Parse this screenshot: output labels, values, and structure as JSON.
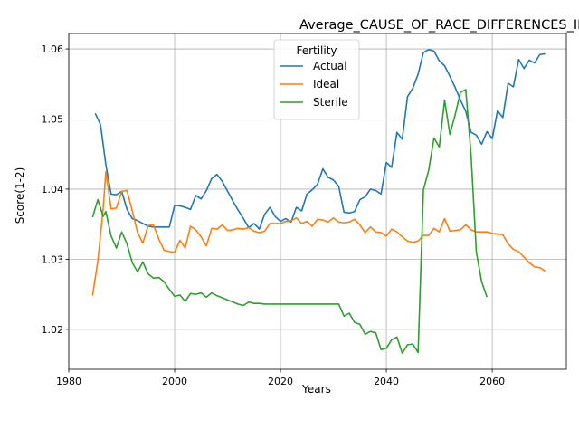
{
  "chart_data": {
    "type": "line",
    "title": "Average_CAUSE_OF_RACE_DIFFERENCES_INBORN_White_Above_Average_by_Fertility",
    "xlabel": "Years",
    "ylabel": "Score(1-2)",
    "xlim": [
      1980,
      2074
    ],
    "ylim": [
      1.0143,
      1.0622
    ],
    "xticks": [
      1980,
      2000,
      2020,
      2040,
      2060
    ],
    "yticks": [
      1.02,
      1.03,
      1.04,
      1.05,
      1.06
    ],
    "grid": true,
    "legend": {
      "title": "Fertility",
      "position": "top-center"
    },
    "series": [
      {
        "name": "Actual",
        "color": "#1f77b4",
        "points": [
          [
            1985,
            1.0508
          ],
          [
            1986,
            1.0492
          ],
          [
            1987,
            1.0435
          ],
          [
            1988,
            1.0393
          ],
          [
            1989,
            1.0392
          ],
          [
            1990,
            1.0397
          ],
          [
            1991,
            1.0371
          ],
          [
            1992,
            1.0358
          ],
          [
            1993,
            1.0355
          ],
          [
            1994,
            1.0351
          ],
          [
            1995,
            1.0347
          ],
          [
            1996,
            1.0346
          ],
          [
            1997,
            1.0346
          ],
          [
            1998,
            1.0346
          ],
          [
            1999,
            1.0346
          ],
          [
            2000,
            1.0377
          ],
          [
            2001,
            1.0376
          ],
          [
            2002,
            1.0374
          ],
          [
            2003,
            1.0371
          ],
          [
            2004,
            1.0391
          ],
          [
            2005,
            1.0386
          ],
          [
            2006,
            1.0398
          ],
          [
            2007,
            1.0415
          ],
          [
            2008,
            1.0421
          ],
          [
            2009,
            1.0411
          ],
          [
            2010,
            1.0397
          ],
          [
            2011,
            1.0383
          ],
          [
            2012,
            1.037
          ],
          [
            2013,
            1.0358
          ],
          [
            2014,
            1.0345
          ],
          [
            2015,
            1.0351
          ],
          [
            2016,
            1.0343
          ],
          [
            2017,
            1.0364
          ],
          [
            2018,
            1.0374
          ],
          [
            2019,
            1.0361
          ],
          [
            2020,
            1.0354
          ],
          [
            2021,
            1.0358
          ],
          [
            2022,
            1.0353
          ],
          [
            2023,
            1.0374
          ],
          [
            2024,
            1.0369
          ],
          [
            2025,
            1.0393
          ],
          [
            2026,
            1.0399
          ],
          [
            2027,
            1.0407
          ],
          [
            2028,
            1.0429
          ],
          [
            2029,
            1.0417
          ],
          [
            2030,
            1.0413
          ],
          [
            2031,
            1.0404
          ],
          [
            2032,
            1.0367
          ],
          [
            2033,
            1.0366
          ],
          [
            2034,
            1.0368
          ],
          [
            2035,
            1.0385
          ],
          [
            2036,
            1.0389
          ],
          [
            2037,
            1.04
          ],
          [
            2038,
            1.0398
          ],
          [
            2039,
            1.0393
          ],
          [
            2040,
            1.0438
          ],
          [
            2041,
            1.0431
          ],
          [
            2042,
            1.0481
          ],
          [
            2043,
            1.0471
          ],
          [
            2044,
            1.0532
          ],
          [
            2045,
            1.0544
          ],
          [
            2046,
            1.0564
          ],
          [
            2047,
            1.0595
          ],
          [
            2048,
            1.0599
          ],
          [
            2049,
            1.0597
          ],
          [
            2050,
            1.0583
          ],
          [
            2051,
            1.0576
          ],
          [
            2052,
            1.0561
          ],
          [
            2053,
            1.0545
          ],
          [
            2054,
            1.0527
          ],
          [
            2055,
            1.0511
          ],
          [
            2056,
            1.0481
          ],
          [
            2057,
            1.0477
          ],
          [
            2058,
            1.0464
          ],
          [
            2059,
            1.0482
          ],
          [
            2060,
            1.0472
          ],
          [
            2061,
            1.0512
          ],
          [
            2062,
            1.0502
          ],
          [
            2063,
            1.0551
          ],
          [
            2064,
            1.0546
          ],
          [
            2065,
            1.0585
          ],
          [
            2066,
            1.0572
          ],
          [
            2067,
            1.0584
          ],
          [
            2068,
            1.058
          ],
          [
            2069,
            1.0592
          ],
          [
            2070,
            1.0593
          ]
        ]
      },
      {
        "name": "Ideal",
        "color": "#ff7f0e",
        "points": [
          [
            1984.5,
            1.0248
          ],
          [
            1985.5,
            1.0298
          ],
          [
            1986.5,
            1.0372
          ],
          [
            1987,
            1.0425
          ],
          [
            1988,
            1.0372
          ],
          [
            1989,
            1.0373
          ],
          [
            1990,
            1.0397
          ],
          [
            1991,
            1.0398
          ],
          [
            1992,
            1.0369
          ],
          [
            1993,
            1.0338
          ],
          [
            1994,
            1.0323
          ],
          [
            1995,
            1.0348
          ],
          [
            1996,
            1.0349
          ],
          [
            1997,
            1.0329
          ],
          [
            1998,
            1.0313
          ],
          [
            1999,
            1.0311
          ],
          [
            2000,
            1.031
          ],
          [
            2001,
            1.0327
          ],
          [
            2002,
            1.0316
          ],
          [
            2003,
            1.0347
          ],
          [
            2004,
            1.0342
          ],
          [
            2005,
            1.0332
          ],
          [
            2006,
            1.0319
          ],
          [
            2007,
            1.0344
          ],
          [
            2008,
            1.0343
          ],
          [
            2009,
            1.0349
          ],
          [
            2010,
            1.0341
          ],
          [
            2011,
            1.0342
          ],
          [
            2012,
            1.0344
          ],
          [
            2013,
            1.0343
          ],
          [
            2014,
            1.0345
          ],
          [
            2015,
            1.034
          ],
          [
            2016,
            1.0338
          ],
          [
            2017,
            1.034
          ],
          [
            2018,
            1.0351
          ],
          [
            2019,
            1.0351
          ],
          [
            2020,
            1.0351
          ],
          [
            2021,
            1.0354
          ],
          [
            2022,
            1.0355
          ],
          [
            2023,
            1.0359
          ],
          [
            2024,
            1.0351
          ],
          [
            2025,
            1.0354
          ],
          [
            2026,
            1.0347
          ],
          [
            2027,
            1.0357
          ],
          [
            2028,
            1.0356
          ],
          [
            2029,
            1.0353
          ],
          [
            2030,
            1.0359
          ],
          [
            2031,
            1.0353
          ],
          [
            2032,
            1.0352
          ],
          [
            2033,
            1.0353
          ],
          [
            2034,
            1.0357
          ],
          [
            2035,
            1.0349
          ],
          [
            2036,
            1.0338
          ],
          [
            2037,
            1.0346
          ],
          [
            2038,
            1.0339
          ],
          [
            2039,
            1.0338
          ],
          [
            2040,
            1.0333
          ],
          [
            2041,
            1.0343
          ],
          [
            2042,
            1.0339
          ],
          [
            2043,
            1.0332
          ],
          [
            2044,
            1.0326
          ],
          [
            2045,
            1.0324
          ],
          [
            2046,
            1.0326
          ],
          [
            2047,
            1.0334
          ],
          [
            2048,
            1.0334
          ],
          [
            2049,
            1.0344
          ],
          [
            2050,
            1.0339
          ],
          [
            2051,
            1.0358
          ],
          [
            2052,
            1.034
          ],
          [
            2053,
            1.0341
          ],
          [
            2054,
            1.0342
          ],
          [
            2055,
            1.0349
          ],
          [
            2056,
            1.0342
          ],
          [
            2057,
            1.0339
          ],
          [
            2058,
            1.0339
          ],
          [
            2059,
            1.0339
          ],
          [
            2060,
            1.0337
          ],
          [
            2061,
            1.0336
          ],
          [
            2062,
            1.0335
          ],
          [
            2063,
            1.0322
          ],
          [
            2064,
            1.0314
          ],
          [
            2065,
            1.0311
          ],
          [
            2066,
            1.0303
          ],
          [
            2067,
            1.0295
          ],
          [
            2068,
            1.0289
          ],
          [
            2069,
            1.0288
          ],
          [
            2070,
            1.0283
          ]
        ]
      },
      {
        "name": "Sterile",
        "color": "#2ca02c",
        "points": [
          [
            1984.5,
            1.036
          ],
          [
            1985.5,
            1.0385
          ],
          [
            1986.5,
            1.0361
          ],
          [
            1987,
            1.0368
          ],
          [
            1988,
            1.0333
          ],
          [
            1989,
            1.0316
          ],
          [
            1990,
            1.0339
          ],
          [
            1991,
            1.0322
          ],
          [
            1992,
            1.0295
          ],
          [
            1993,
            1.0282
          ],
          [
            1994,
            1.0296
          ],
          [
            1995,
            1.0279
          ],
          [
            1996,
            1.0273
          ],
          [
            1997,
            1.0274
          ],
          [
            1998,
            1.0268
          ],
          [
            1999,
            1.0257
          ],
          [
            2000,
            1.0247
          ],
          [
            2001,
            1.0249
          ],
          [
            2002,
            1.024
          ],
          [
            2003,
            1.0251
          ],
          [
            2004,
            1.025
          ],
          [
            2005,
            1.0252
          ],
          [
            2006,
            1.0246
          ],
          [
            2007,
            1.0252
          ],
          [
            2008,
            1.0248
          ],
          [
            2009,
            1.0245
          ],
          [
            2010,
            1.0242
          ],
          [
            2011,
            1.0239
          ],
          [
            2012,
            1.0236
          ],
          [
            2013,
            1.0234
          ],
          [
            2014,
            1.0239
          ],
          [
            2015,
            1.0237
          ],
          [
            2016,
            1.0237
          ],
          [
            2017,
            1.0236
          ],
          [
            2018,
            1.0236
          ],
          [
            2020,
            1.0236
          ],
          [
            2025,
            1.0236
          ],
          [
            2031,
            1.0236
          ],
          [
            2032,
            1.0219
          ],
          [
            2033,
            1.0223
          ],
          [
            2034,
            1.021
          ],
          [
            2035,
            1.0207
          ],
          [
            2036,
            1.0193
          ],
          [
            2037,
            1.0197
          ],
          [
            2038,
            1.0195
          ],
          [
            2039,
            1.0171
          ],
          [
            2040,
            1.0173
          ],
          [
            2041,
            1.0185
          ],
          [
            2042,
            1.0189
          ],
          [
            2043,
            1.0166
          ],
          [
            2044,
            1.0178
          ],
          [
            2045,
            1.0179
          ],
          [
            2046,
            1.0167
          ],
          [
            2047,
            1.0399
          ],
          [
            2048,
            1.0427
          ],
          [
            2049,
            1.0473
          ],
          [
            2050,
            1.046
          ],
          [
            2051,
            1.0527
          ],
          [
            2052,
            1.0478
          ],
          [
            2053,
            1.0506
          ],
          [
            2054,
            1.0538
          ],
          [
            2055,
            1.0542
          ],
          [
            2056,
            1.0449
          ],
          [
            2057,
            1.031
          ],
          [
            2058,
            1.0268
          ],
          [
            2059,
            1.0246
          ]
        ]
      }
    ]
  }
}
